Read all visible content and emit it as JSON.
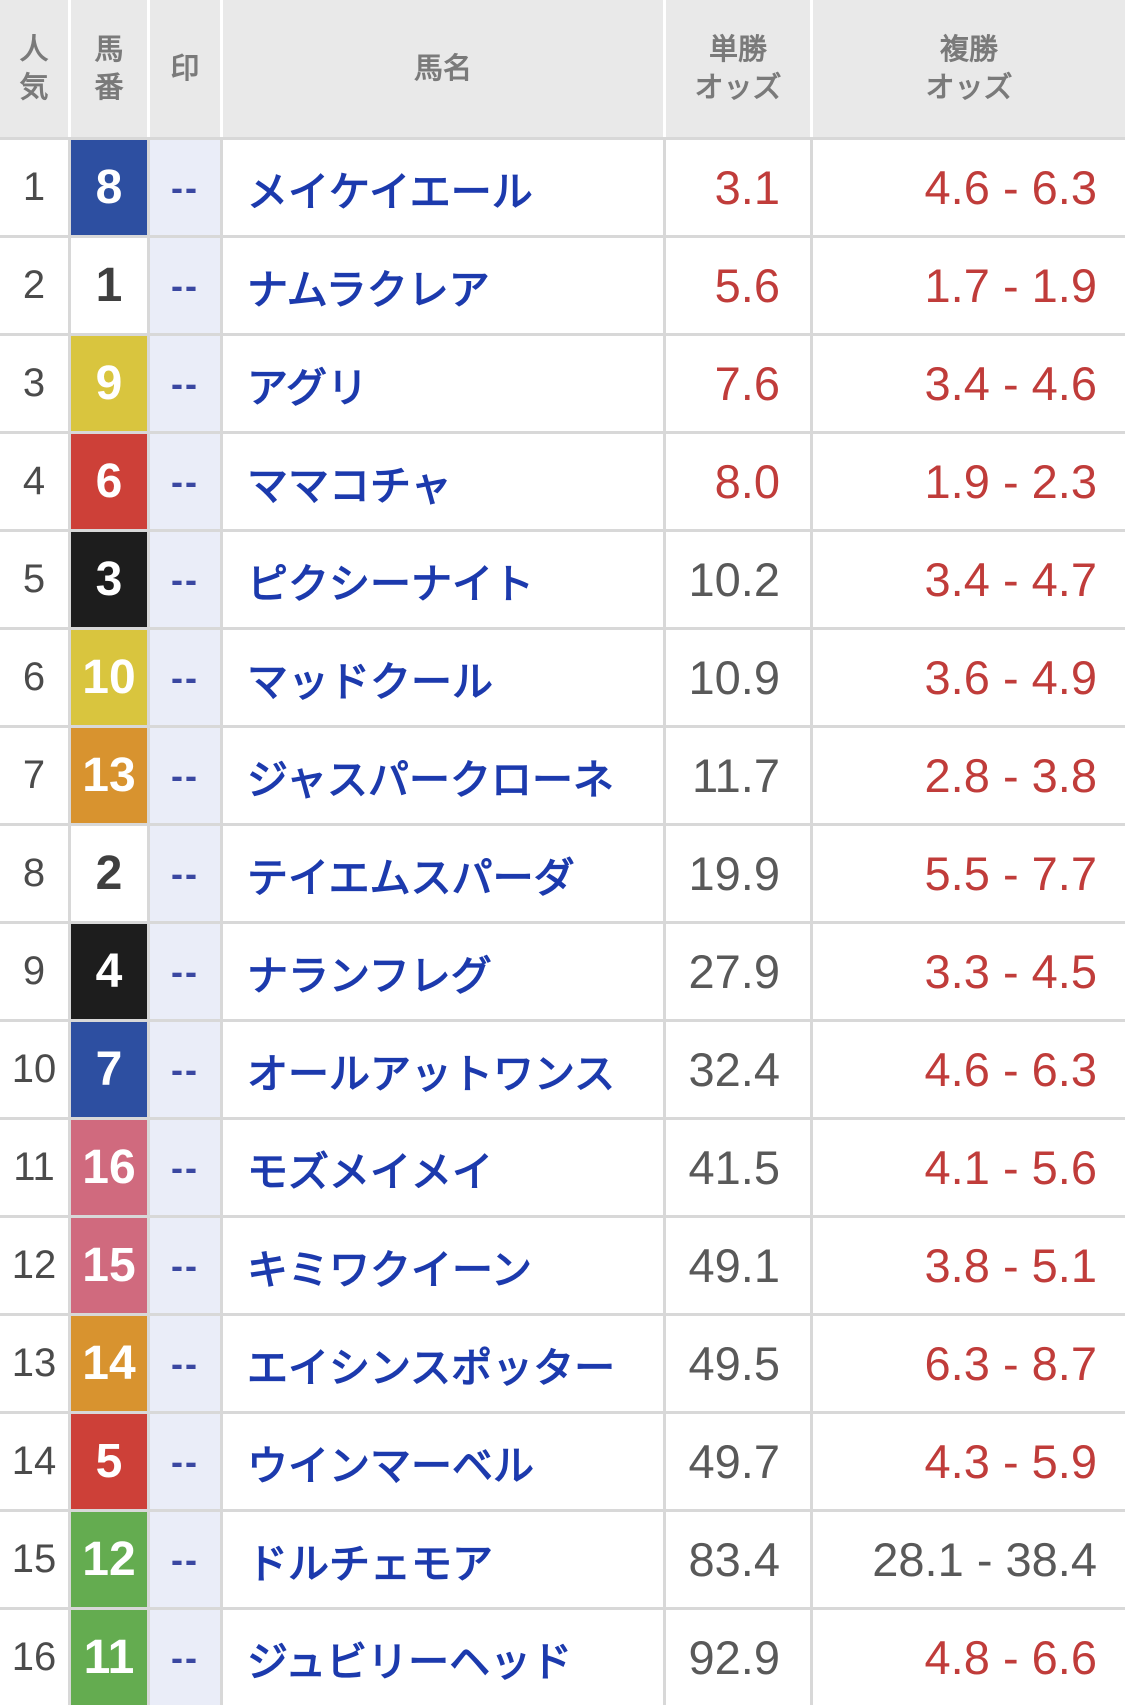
{
  "table": {
    "headers": {
      "rank": "人\n気",
      "horse_number": "馬\n番",
      "mark": "印",
      "horse_name": "馬名",
      "win_odds": "単勝\nオッズ",
      "place_odds": "複勝\nオッズ"
    },
    "rows": [
      {
        "rank": "1",
        "number": "8",
        "frame": "blue",
        "frame_color": "#2d4fa1",
        "number_color": "#ffffff",
        "mark": "--",
        "name": "メイケイエール",
        "win": "3.1",
        "win_class": "odds-hot",
        "place": "4.6 - 6.3",
        "place_class": "odds-hot"
      },
      {
        "rank": "2",
        "number": "1",
        "frame": "white",
        "frame_color": "#ffffff",
        "number_color": "#3f3f3f",
        "mark": "--",
        "name": "ナムラクレア",
        "win": "5.6",
        "win_class": "odds-hot",
        "place": "1.7 - 1.9",
        "place_class": "odds-hot"
      },
      {
        "rank": "3",
        "number": "9",
        "frame": "yellow",
        "frame_color": "#d9c53e",
        "number_color": "#ffffff",
        "mark": "--",
        "name": "アグリ",
        "win": "7.6",
        "win_class": "odds-hot",
        "place": "3.4 - 4.6",
        "place_class": "odds-hot"
      },
      {
        "rank": "4",
        "number": "6",
        "frame": "red",
        "frame_color": "#cd4038",
        "number_color": "#ffffff",
        "mark": "--",
        "name": "ママコチャ",
        "win": "8.0",
        "win_class": "odds-hot",
        "place": "1.9 - 2.3",
        "place_class": "odds-hot"
      },
      {
        "rank": "5",
        "number": "3",
        "frame": "black",
        "frame_color": "#1d1d1d",
        "number_color": "#ffffff",
        "mark": "--",
        "name": "ピクシーナイト",
        "win": "10.2",
        "win_class": "odds-cool",
        "place": "3.4 - 4.7",
        "place_class": "odds-hot"
      },
      {
        "rank": "6",
        "number": "10",
        "frame": "yellow",
        "frame_color": "#d9c53e",
        "number_color": "#ffffff",
        "mark": "--",
        "name": "マッドクール",
        "win": "10.9",
        "win_class": "odds-cool",
        "place": "3.6 - 4.9",
        "place_class": "odds-hot"
      },
      {
        "rank": "7",
        "number": "13",
        "frame": "orange",
        "frame_color": "#d8932f",
        "number_color": "#ffffff",
        "mark": "--",
        "name": "ジャスパークローネ",
        "win": "11.7",
        "win_class": "odds-cool",
        "place": "2.8 - 3.8",
        "place_class": "odds-hot"
      },
      {
        "rank": "8",
        "number": "2",
        "frame": "white",
        "frame_color": "#ffffff",
        "number_color": "#3f3f3f",
        "mark": "--",
        "name": "テイエムスパーダ",
        "win": "19.9",
        "win_class": "odds-cool",
        "place": "5.5 - 7.7",
        "place_class": "odds-hot"
      },
      {
        "rank": "9",
        "number": "4",
        "frame": "black",
        "frame_color": "#1d1d1d",
        "number_color": "#ffffff",
        "mark": "--",
        "name": "ナランフレグ",
        "win": "27.9",
        "win_class": "odds-cool",
        "place": "3.3 - 4.5",
        "place_class": "odds-hot"
      },
      {
        "rank": "10",
        "number": "7",
        "frame": "blue",
        "frame_color": "#2d4fa1",
        "number_color": "#ffffff",
        "mark": "--",
        "name": "オールアットワンス",
        "win": "32.4",
        "win_class": "odds-cool",
        "place": "4.6 - 6.3",
        "place_class": "odds-hot"
      },
      {
        "rank": "11",
        "number": "16",
        "frame": "pink",
        "frame_color": "#d06a7e",
        "number_color": "#ffffff",
        "mark": "--",
        "name": "モズメイメイ",
        "win": "41.5",
        "win_class": "odds-cool",
        "place": "4.1 - 5.6",
        "place_class": "odds-hot"
      },
      {
        "rank": "12",
        "number": "15",
        "frame": "pink",
        "frame_color": "#d06a7e",
        "number_color": "#ffffff",
        "mark": "--",
        "name": "キミワクイーン",
        "win": "49.1",
        "win_class": "odds-cool",
        "place": "3.8 - 5.1",
        "place_class": "odds-hot"
      },
      {
        "rank": "13",
        "number": "14",
        "frame": "orange",
        "frame_color": "#d8932f",
        "number_color": "#ffffff",
        "mark": "--",
        "name": "エイシンスポッター",
        "win": "49.5",
        "win_class": "odds-cool",
        "place": "6.3 - 8.7",
        "place_class": "odds-hot"
      },
      {
        "rank": "14",
        "number": "5",
        "frame": "red",
        "frame_color": "#cd4038",
        "number_color": "#ffffff",
        "mark": "--",
        "name": "ウインマーベル",
        "win": "49.7",
        "win_class": "odds-cool",
        "place": "4.3 - 5.9",
        "place_class": "odds-hot"
      },
      {
        "rank": "15",
        "number": "12",
        "frame": "green",
        "frame_color": "#64ac50",
        "number_color": "#ffffff",
        "mark": "--",
        "name": "ドルチェモア",
        "win": "83.4",
        "win_class": "odds-cool",
        "place": "28.1 - 38.4",
        "place_class": "odds-cool"
      },
      {
        "rank": "16",
        "number": "11",
        "frame": "green",
        "frame_color": "#64ac50",
        "number_color": "#ffffff",
        "mark": "--",
        "name": "ジュビリーヘッド",
        "win": "92.9",
        "win_class": "odds-cool",
        "place": "4.8 - 6.6",
        "place_class": "odds-hot"
      }
    ]
  },
  "colors": {
    "frame_palette": {
      "white": "#ffffff",
      "black": "#1d1d1d",
      "red": "#cd4038",
      "blue": "#2d4fa1",
      "yellow": "#d9c53e",
      "green": "#64ac50",
      "orange": "#d8932f",
      "pink": "#d06a7e"
    },
    "odds_low": "#c03c3a",
    "odds_normal": "#595959",
    "horse_name_link": "#1c3aad",
    "mark_text": "#3a47a1",
    "mark_cell_bg": "#eaedf8",
    "header_bg": "#e9e9e9",
    "header_text": "#7a7a7a",
    "grid_line": "#d8d8d8"
  }
}
